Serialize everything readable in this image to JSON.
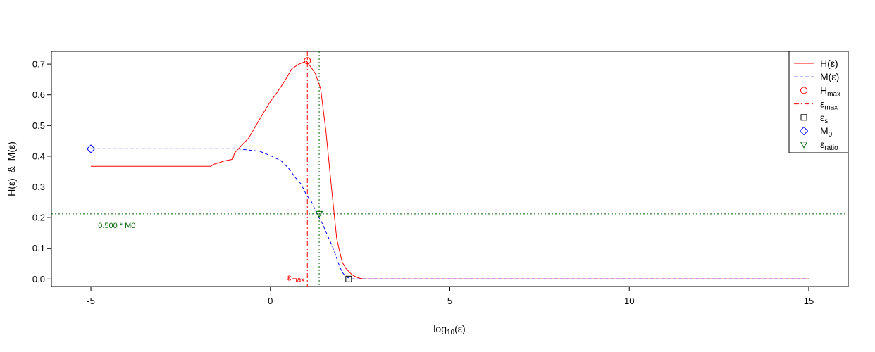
{
  "chart_data": {
    "type": "line",
    "xlabel": "log10(ε)",
    "ylabel": "H(ε)  &  M(ε)",
    "xlim": [
      -6.1,
      16.1
    ],
    "ylim": [
      -0.0245,
      0.7415
    ],
    "xticks": [
      -5,
      0,
      5,
      10,
      15
    ],
    "xtick_labels": [
      "-5",
      "0",
      "5",
      "10",
      "15"
    ],
    "yticks": [
      0.0,
      0.1,
      0.2,
      0.3,
      0.4,
      0.5,
      0.6,
      0.7
    ],
    "ytick_labels": [
      "0.0",
      "0.1",
      "0.2",
      "0.3",
      "0.4",
      "0.5",
      "0.6",
      "0.7"
    ],
    "grid": false,
    "legend_position": "top-right",
    "colors": {
      "H": "#ff0000",
      "M": "#0000ff",
      "eps_max": "#ff0000",
      "eps_s": "#000000",
      "M0": "#0000ff",
      "eps_ratio": "#006400"
    },
    "series": [
      {
        "name": "H(ε)",
        "style": "solid",
        "x": [
          -5.0,
          -1.65,
          -1.6,
          -1.45,
          -1.3,
          -1.05,
          -1.0,
          -0.8,
          -0.6,
          -0.4,
          -0.2,
          0.0,
          0.2,
          0.4,
          0.6,
          0.8,
          0.9,
          1.0,
          1.1,
          1.25,
          1.4,
          1.55,
          1.7,
          1.85,
          2.0,
          2.1,
          2.2,
          2.3,
          2.4,
          2.5,
          2.6,
          15.0
        ],
        "y": [
          0.367,
          0.367,
          0.373,
          0.378,
          0.384,
          0.39,
          0.41,
          0.435,
          0.46,
          0.5,
          0.54,
          0.578,
          0.61,
          0.645,
          0.685,
          0.7,
          0.705,
          0.711,
          0.695,
          0.67,
          0.62,
          0.48,
          0.3,
          0.13,
          0.055,
          0.035,
          0.022,
          0.012,
          0.006,
          0.002,
          0.0,
          0.0
        ]
      },
      {
        "name": "M(ε)",
        "style": "dashed",
        "x": [
          -5.0,
          -0.9,
          -0.6,
          -0.3,
          0.0,
          0.3,
          0.5,
          0.7,
          0.85,
          1.0,
          1.15,
          1.3,
          1.45,
          1.6,
          1.75,
          1.9,
          2.0,
          2.1,
          2.2,
          2.3,
          15.0
        ],
        "y": [
          0.424,
          0.424,
          0.42,
          0.416,
          0.402,
          0.385,
          0.362,
          0.33,
          0.31,
          0.275,
          0.25,
          0.212,
          0.18,
          0.14,
          0.1,
          0.05,
          0.022,
          0.008,
          0.002,
          0.0,
          0.0
        ]
      }
    ],
    "markers": [
      {
        "name": "Hmax",
        "shape": "circle",
        "x": 1.03,
        "y": 0.711
      },
      {
        "name": "εs",
        "shape": "square",
        "x": 2.18,
        "y": 0.0
      },
      {
        "name": "M0",
        "shape": "diamond",
        "x": -5.0,
        "y": 0.424
      },
      {
        "name": "εratio",
        "shape": "triangle-down",
        "x": 1.36,
        "y": 0.212
      }
    ],
    "reference_lines": [
      {
        "name": "εmax",
        "orientation": "vertical",
        "value": 1.03,
        "style": "dotdash",
        "color": "#ff0000"
      },
      {
        "name": "ε ratio",
        "orientation": "vertical",
        "value": 1.36,
        "style": "dotted",
        "color": "#006400"
      },
      {
        "name": "0.500 * M0",
        "orientation": "horizontal",
        "value": 0.212,
        "style": "dotted",
        "color": "#006400"
      }
    ],
    "annotations": [
      {
        "text_main": "ε",
        "text_sub": "max",
        "x": 0.6,
        "y": 0.0,
        "color": "#ff0000"
      },
      {
        "text": "0.500 * M0",
        "x": -4.8,
        "y": 0.175,
        "color": "#006400"
      }
    ],
    "legend": [
      {
        "main": "H(ε)",
        "sub": "",
        "symbol": "line-solid",
        "color": "#ff0000"
      },
      {
        "main": "M(ε)",
        "sub": "",
        "symbol": "line-dashed",
        "color": "#0000ff"
      },
      {
        "main": "H",
        "sub": "max",
        "symbol": "circle",
        "color": "#ff0000"
      },
      {
        "main": "ε",
        "sub": "max",
        "symbol": "line-dotdash",
        "color": "#ff0000"
      },
      {
        "main": "ε",
        "sub": "s",
        "symbol": "square",
        "color": "#000000"
      },
      {
        "main": "M",
        "sub": "0",
        "symbol": "diamond",
        "color": "#0000ff"
      },
      {
        "main": "ε",
        "sub": "ratio",
        "symbol": "triangle-down",
        "color": "#006400"
      }
    ]
  }
}
